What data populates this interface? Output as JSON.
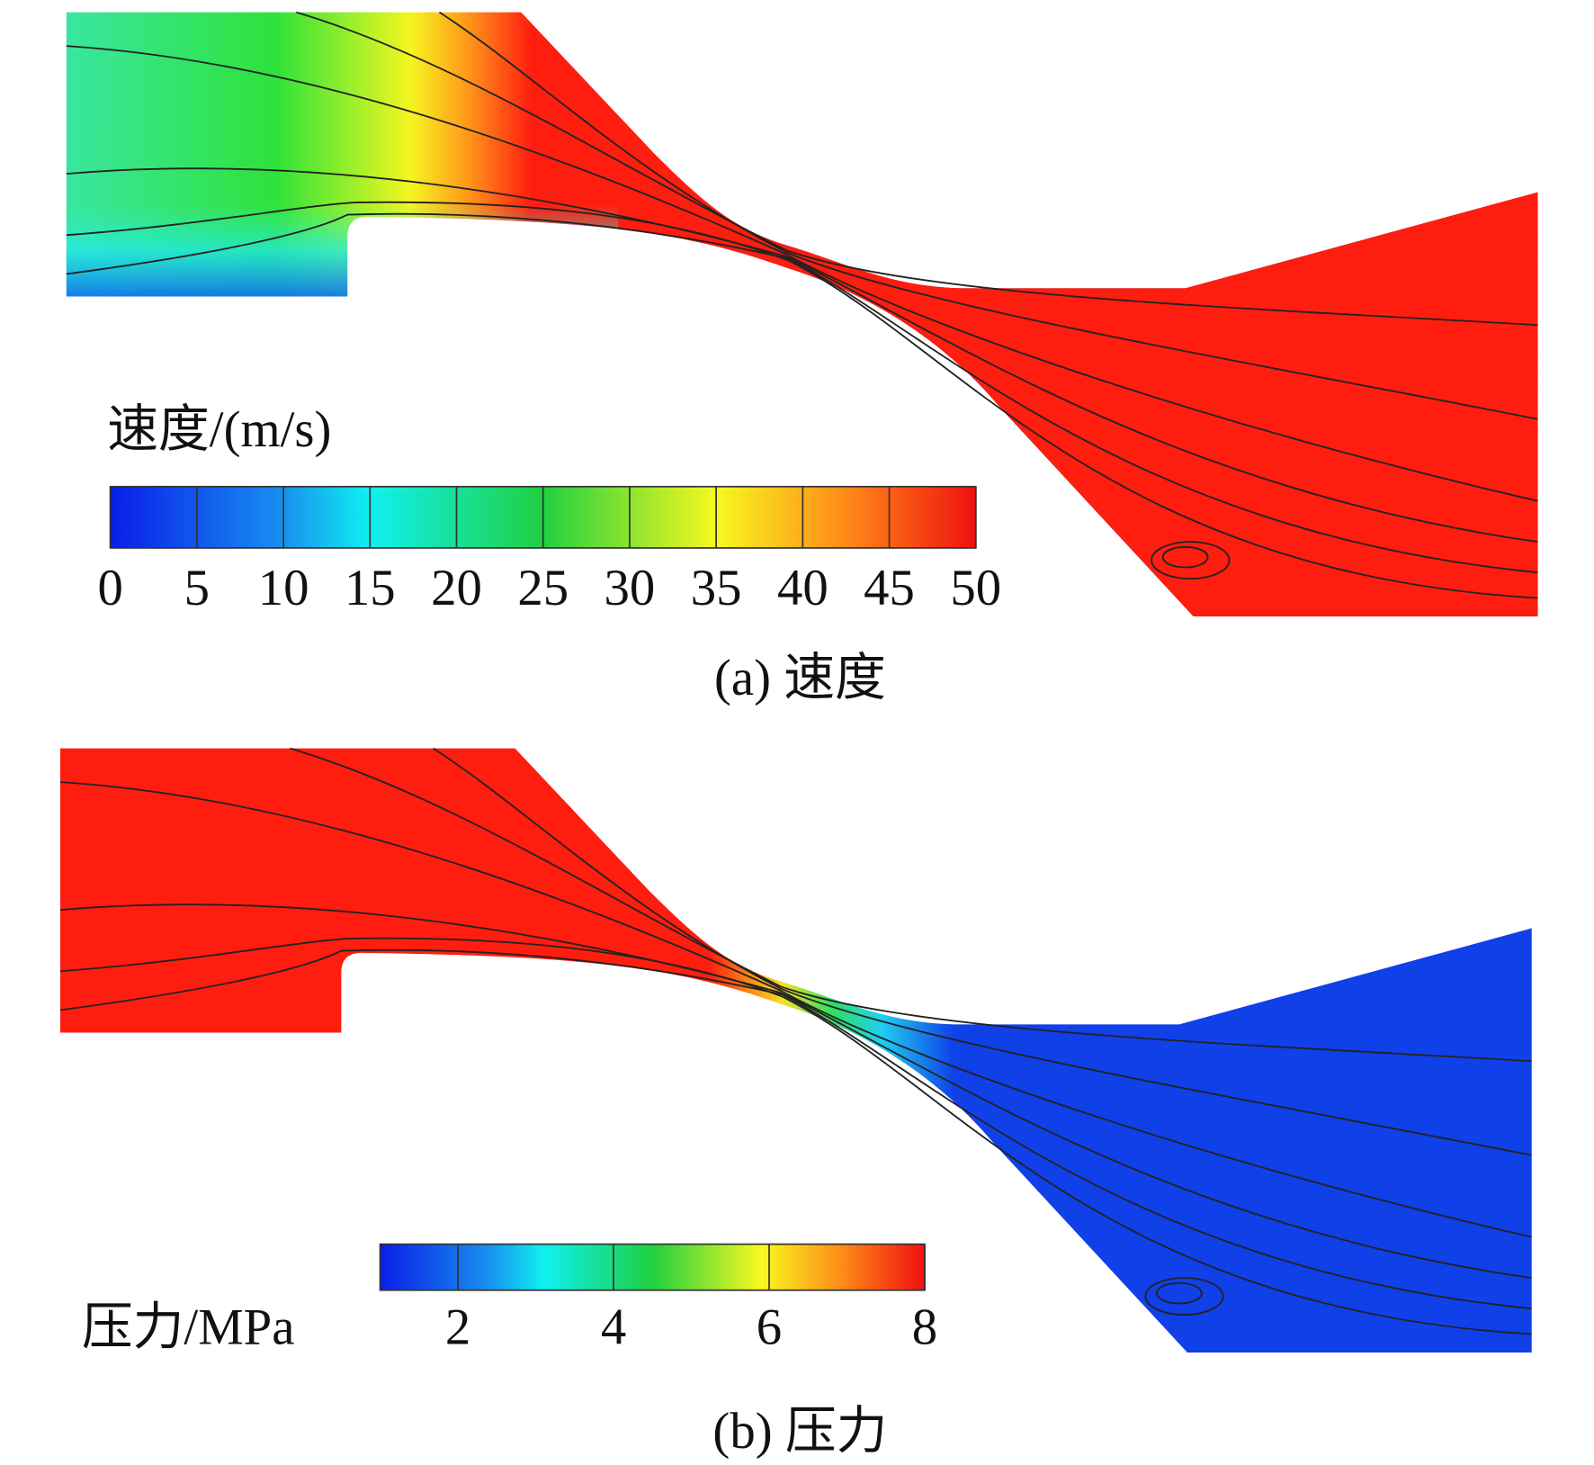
{
  "panels": [
    {
      "colorbar": {
        "title": "速度/(m/s)",
        "range": [
          0,
          50
        ],
        "ticks": [
          0,
          5,
          10,
          15,
          20,
          25,
          30,
          35,
          40,
          45,
          50
        ]
      },
      "caption": "(a) 速度"
    },
    {
      "colorbar": {
        "title": "压力/MPa",
        "range": [
          1,
          8
        ],
        "ticks": [
          2,
          4,
          6,
          8
        ]
      },
      "caption": "(b) 压力"
    }
  ]
}
